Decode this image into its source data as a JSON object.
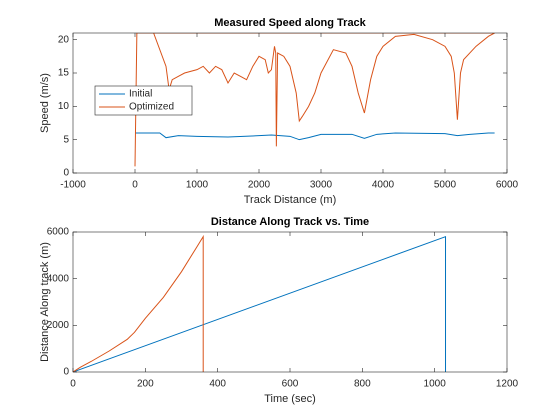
{
  "chart_data": [
    {
      "type": "line",
      "title": "Measured Speed along Track",
      "xlabel": "Track Distance (m)",
      "ylabel": "Speed (m/s)",
      "xlim": [
        -1000,
        6000
      ],
      "xticks": [
        -1000,
        0,
        1000,
        2000,
        3000,
        4000,
        5000,
        6000
      ],
      "ylim": [
        0,
        21
      ],
      "yticks": [
        0,
        5,
        10,
        15,
        20
      ],
      "legend": "northwest",
      "series": [
        {
          "name": "Initial",
          "color": "#0072bd",
          "x": [
            0,
            400,
            500,
            700,
            1000,
            1500,
            2000,
            2200,
            2500,
            2650,
            2800,
            3000,
            3500,
            3700,
            3900,
            4200,
            5000,
            5200,
            5400,
            5700,
            5800
          ],
          "values": [
            6,
            6,
            5.3,
            5.6,
            5.5,
            5.4,
            5.6,
            5.7,
            5.5,
            5.0,
            5.3,
            5.8,
            5.8,
            5.2,
            5.8,
            6,
            5.9,
            5.6,
            5.8,
            6,
            6
          ]
        },
        {
          "name": "Optimized",
          "color": "#d95319",
          "x": [
            0,
            30,
            300,
            500,
            550,
            600,
            700,
            800,
            1000,
            1100,
            1200,
            1300,
            1400,
            1500,
            1600,
            1700,
            1800,
            1900,
            2000,
            2100,
            2150,
            2200,
            2250,
            2270,
            2280,
            2300,
            2400,
            2500,
            2600,
            2650,
            2700,
            2800,
            2900,
            3000,
            3200,
            3400,
            3500,
            3600,
            3700,
            3800,
            3900,
            4000,
            4200,
            4500,
            4800,
            5000,
            5100,
            5150,
            5200,
            5250,
            5300,
            5500,
            5700,
            5800,
            30
          ],
          "values": [
            1,
            21,
            21,
            16,
            12.5,
            14,
            14.5,
            15,
            15.5,
            16,
            15,
            16,
            15.5,
            13.5,
            15,
            14.5,
            14,
            16,
            17.5,
            17,
            15,
            15.5,
            19,
            18,
            4,
            18,
            17.5,
            16,
            12,
            7.8,
            8.5,
            10,
            12,
            15,
            18.5,
            18,
            16,
            12,
            9,
            14,
            17.5,
            19,
            20.5,
            20.8,
            20,
            19,
            17.5,
            15,
            8,
            15,
            17,
            19,
            20.5,
            21,
            21
          ]
        }
      ]
    },
    {
      "type": "line",
      "title": "Distance Along Track vs. Time",
      "xlabel": "Time (sec)",
      "ylabel": "Distance Along track (m)",
      "xlim": [
        0,
        1200
      ],
      "xticks": [
        0,
        200,
        400,
        600,
        800,
        1000,
        1200
      ],
      "ylim": [
        0,
        6000
      ],
      "yticks": [
        0,
        2000,
        4000,
        6000
      ],
      "series": [
        {
          "color": "#0072bd",
          "x": [
            0,
            1030,
            1030
          ],
          "values": [
            0,
            5800,
            0
          ]
        },
        {
          "color": "#d95319",
          "x": [
            0,
            20,
            50,
            100,
            150,
            170,
            200,
            250,
            300,
            340,
            360,
            360
          ],
          "values": [
            0,
            200,
            450,
            900,
            1400,
            1700,
            2300,
            3200,
            4300,
            5300,
            5800,
            0
          ]
        }
      ]
    }
  ]
}
